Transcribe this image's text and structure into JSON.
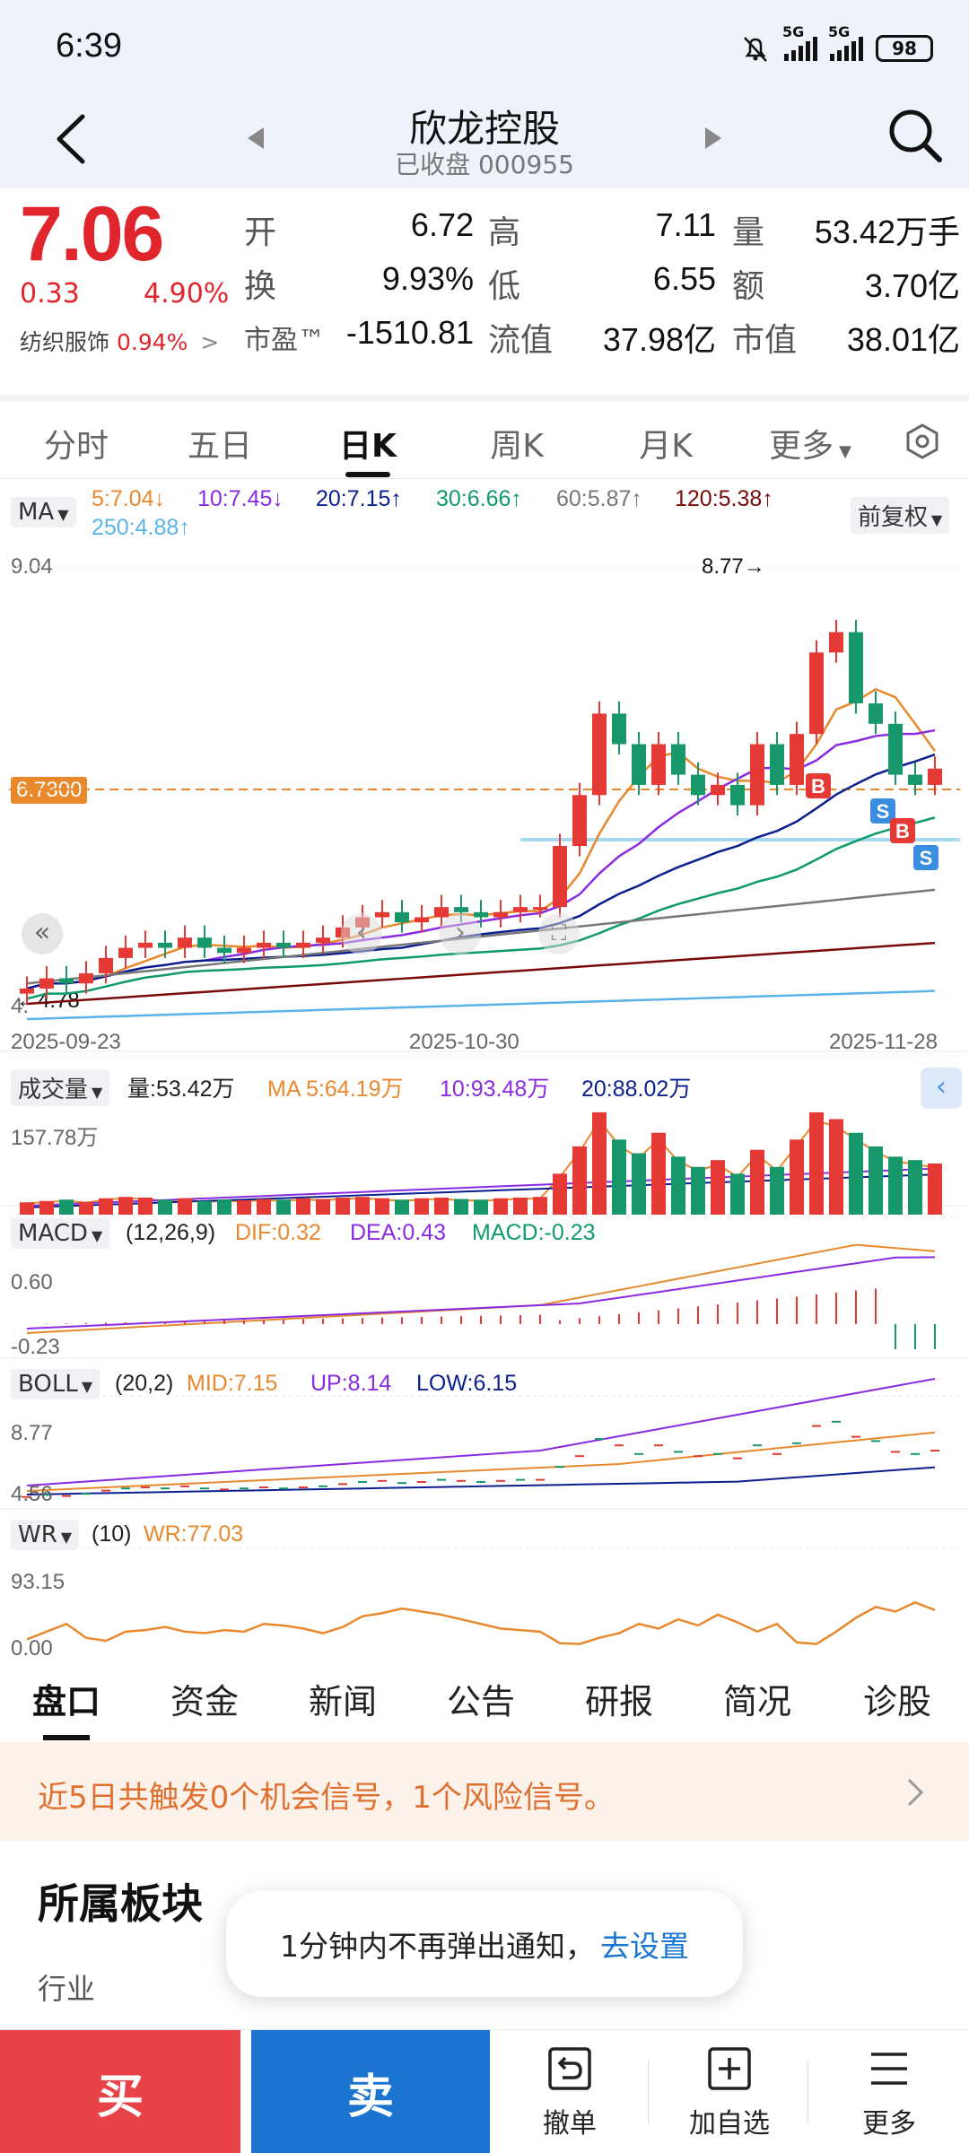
{
  "status_bar": {
    "time": "6:39",
    "battery": "98",
    "net1": "5G",
    "net2": "5G"
  },
  "header": {
    "stock_name": "欣龙控股",
    "status": "已收盘 000955"
  },
  "quote": {
    "price": "7.06",
    "change": "0.33",
    "change_pct": "4.90%",
    "industry_label": "纺织服饰",
    "industry_pct": "0.94%",
    "fields": {
      "open_label": "开",
      "open": "6.72",
      "high_label": "高",
      "high": "7.11",
      "volume_label": "量",
      "volume": "53.42万手",
      "turnover_label": "换",
      "turnover": "9.93%",
      "low_label": "低",
      "low": "6.55",
      "amount_label": "额",
      "amount": "3.70亿",
      "pe_label": "市盈™",
      "pe": "-1510.81",
      "float_cap_label": "流值",
      "float_cap": "37.98亿",
      "mkt_cap_label": "市值",
      "mkt_cap": "38.01亿"
    }
  },
  "period_tabs": [
    "分时",
    "五日",
    "日K",
    "周K",
    "月K",
    "更多"
  ],
  "active_period": "日K",
  "kline": {
    "ma_chip": "MA",
    "adjust_chip": "前复权",
    "ma_labels": {
      "ma5": "5:7.04↓",
      "ma10": "10:7.45↓",
      "ma20": "20:7.15↑",
      "ma30": "30:6.66↑",
      "ma60": "60:5.87↑",
      "ma120": "120:5.38↑",
      "ma250": "250:4.88↑"
    },
    "colors": {
      "ma5": "#e8892e",
      "ma10": "#8a2be2",
      "ma20": "#0b1f8f",
      "ma30": "#0f9a6a",
      "ma60": "#777777",
      "ma120": "#7a0a0a",
      "ma250": "#5ab4e8",
      "up": "#e53935",
      "down": "#17976a"
    },
    "y_top_label": "9.04",
    "y_bottom_label": "4.",
    "max_marker": "8.77→",
    "min_marker": "←4.78",
    "price_line_label": "6.7300",
    "dates": [
      "2025-09-23",
      "2025-10-30",
      "2025-11-28"
    ],
    "trade_markers": [
      "B",
      "S",
      "B",
      "S"
    ]
  },
  "volume_panel": {
    "chip": "成交量",
    "vol": "量:53.42万",
    "ma5": "MA 5:64.19万",
    "ma10": "10:93.48万",
    "ma20": "20:88.02万",
    "top": "157.78万"
  },
  "macd_panel": {
    "chip": "MACD",
    "params": "(12,26,9)",
    "dif": "DIF:0.32",
    "dea": "DEA:0.43",
    "macd": "MACD:-0.23",
    "top": "0.60",
    "bottom": "-0.23"
  },
  "boll_panel": {
    "chip": "BOLL",
    "params": "(20,2)",
    "mid": "MID:7.15",
    "up": "UP:8.14",
    "low": "LOW:6.15",
    "top": "8.77",
    "bottom": "4.56"
  },
  "wr_panel": {
    "chip": "WR",
    "params": "(10)",
    "wr": "WR:77.03",
    "top": "93.15",
    "bottom": "0.00"
  },
  "sub_tabs": [
    "盘口",
    "资金",
    "新闻",
    "公告",
    "研报",
    "简况",
    "诊股"
  ],
  "signal": "近5日共触发0个机会信号，1个风险信号。",
  "sector": {
    "title": "所属板块",
    "industry": "行业"
  },
  "toast": {
    "text": "1分钟内不再弹出通知，",
    "link": "去设置"
  },
  "actions": {
    "buy": "买",
    "sell": "卖",
    "cancel": "撤单",
    "watchlist": "加自选",
    "more": "更多"
  }
}
